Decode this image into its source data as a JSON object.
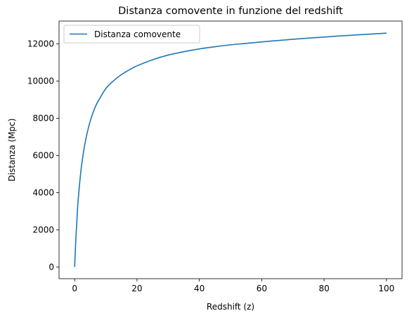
{
  "chart_data": {
    "type": "line",
    "title": "Distanza comovente in funzione del redshift",
    "xlabel": "Redshift (z)",
    "ylabel": "Distanza (Mpc)",
    "xlim": [
      -5,
      105
    ],
    "ylim": [
      -630,
      13230
    ],
    "xticks": [
      0,
      20,
      40,
      60,
      80,
      100
    ],
    "yticks": [
      0,
      2000,
      4000,
      6000,
      8000,
      10000,
      12000
    ],
    "grid": false,
    "legend_position": "top-left",
    "series": [
      {
        "name": "Distanza comovente",
        "color": "#1f77b4",
        "x": [
          0,
          0.25,
          0.5,
          0.75,
          1,
          1.5,
          2,
          2.5,
          3,
          3.5,
          4,
          5,
          6,
          7,
          8,
          10,
          12,
          15,
          18,
          20,
          25,
          30,
          35,
          40,
          45,
          50,
          55,
          60,
          65,
          70,
          75,
          80,
          85,
          90,
          95,
          100
        ],
        "y": [
          0,
          1000,
          1850,
          2550,
          3300,
          4300,
          5150,
          5800,
          6350,
          6800,
          7200,
          7850,
          8350,
          8750,
          9050,
          9600,
          9950,
          10350,
          10650,
          10820,
          11150,
          11400,
          11580,
          11730,
          11850,
          11950,
          12030,
          12110,
          12180,
          12250,
          12310,
          12370,
          12430,
          12480,
          12530,
          12580
        ]
      }
    ]
  }
}
